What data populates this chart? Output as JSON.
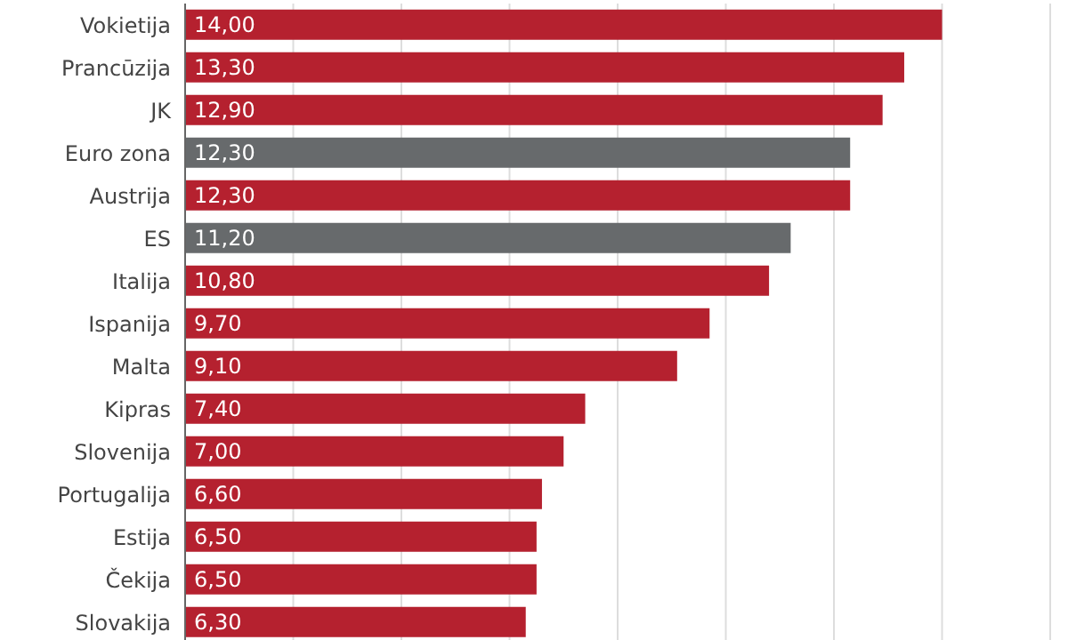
{
  "chart_data": {
    "type": "bar",
    "orientation": "horizontal",
    "categories": [
      "Vokietija",
      "Prancūzija",
      "JK",
      "Euro zona",
      "Austrija",
      "ES",
      "Italija",
      "Ispanija",
      "Malta",
      "Kipras",
      "Slovenija",
      "Portugalija",
      "Estija",
      "Čekija",
      "Slovakija"
    ],
    "values": [
      14.0,
      13.3,
      12.9,
      12.3,
      12.3,
      11.2,
      10.8,
      9.7,
      9.1,
      7.4,
      7.0,
      6.6,
      6.5,
      6.5,
      6.3
    ],
    "colors": [
      "#b5212f",
      "#b5212f",
      "#b5212f",
      "#676a6c",
      "#b5212f",
      "#676a6c",
      "#b5212f",
      "#b5212f",
      "#b5212f",
      "#b5212f",
      "#b5212f",
      "#b5212f",
      "#b5212f",
      "#b5212f",
      "#b5212f"
    ],
    "value_labels": [
      "14,00",
      "13,30",
      "12,90",
      "12,30",
      "12,30",
      "11,20",
      "10,80",
      "9,70",
      "9,10",
      "7,40",
      "7,00",
      "6,60",
      "6,50",
      "6,50",
      "6,30"
    ],
    "xlim": [
      0,
      16
    ],
    "xticks": [
      {
        "value": 0,
        "label": null
      },
      {
        "value": 2,
        "label": null
      },
      {
        "value": 4,
        "label": null
      },
      {
        "value": 6,
        "label": null
      },
      {
        "value": 8,
        "label": null
      },
      {
        "value": 10,
        "label": null
      },
      {
        "value": 12,
        "label": null
      },
      {
        "value": 14,
        "label": null
      },
      {
        "value": 16,
        "label": null
      }
    ],
    "grid": "x",
    "tick_labels": "y"
  }
}
